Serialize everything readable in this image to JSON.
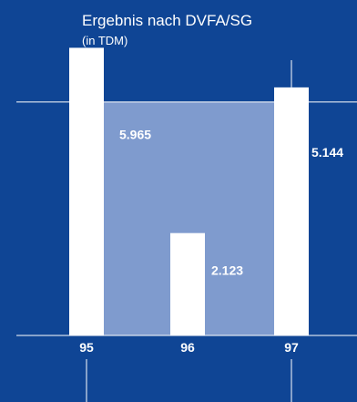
{
  "chart_data": {
    "type": "bar",
    "title": "Ergebnis nach DVFA/SG",
    "subtitle": "(in TDM)",
    "categories": [
      "95",
      "96",
      "97"
    ],
    "values": [
      5965,
      2123,
      5144
    ],
    "value_labels": [
      "5.965",
      "2.123",
      "5.144"
    ],
    "ylim": [
      0,
      6200
    ],
    "grid": false,
    "legend": "none",
    "colors": {
      "background": "#0f4595",
      "bars": "#ffffff",
      "band": "#7f9bce",
      "lines": "#ffffff",
      "text": "#ffffff"
    }
  }
}
